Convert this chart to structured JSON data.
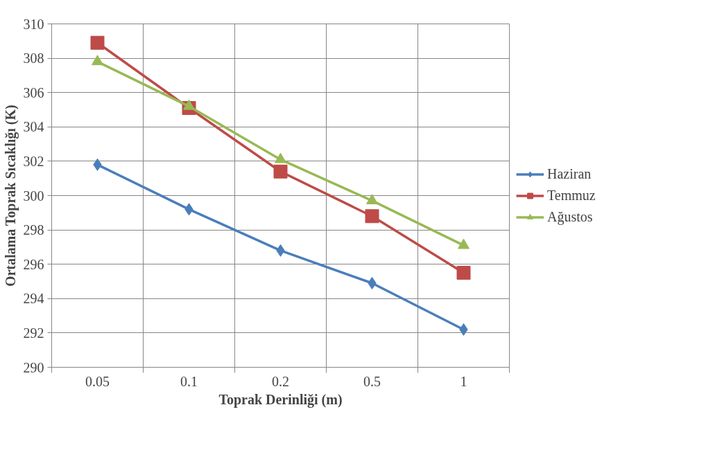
{
  "chart_data": {
    "type": "line",
    "xlabel": "Toprak Derinliği (m)",
    "ylabel": "Ortalama Toprak Sıcaklığı (K)",
    "categories": [
      "0.05",
      "0.1",
      "0.2",
      "0.5",
      "1"
    ],
    "series": [
      {
        "name": "Haziran",
        "color": "#4a7ebb",
        "marker": "diamond",
        "values": [
          301.8,
          299.2,
          296.8,
          294.9,
          292.2
        ]
      },
      {
        "name": "Temmuz",
        "color": "#be4b48",
        "marker": "square",
        "values": [
          308.9,
          305.1,
          301.4,
          298.8,
          295.5
        ]
      },
      {
        "name": "Ağustos",
        "color": "#98b954",
        "marker": "triangle",
        "values": [
          307.8,
          305.2,
          302.1,
          299.7,
          297.1
        ]
      }
    ],
    "ylim": [
      290,
      310
    ],
    "yticks": [
      290,
      292,
      294,
      296,
      298,
      300,
      302,
      304,
      306,
      308,
      310
    ],
    "grid": true,
    "legend": "right",
    "line_style": "solid"
  }
}
